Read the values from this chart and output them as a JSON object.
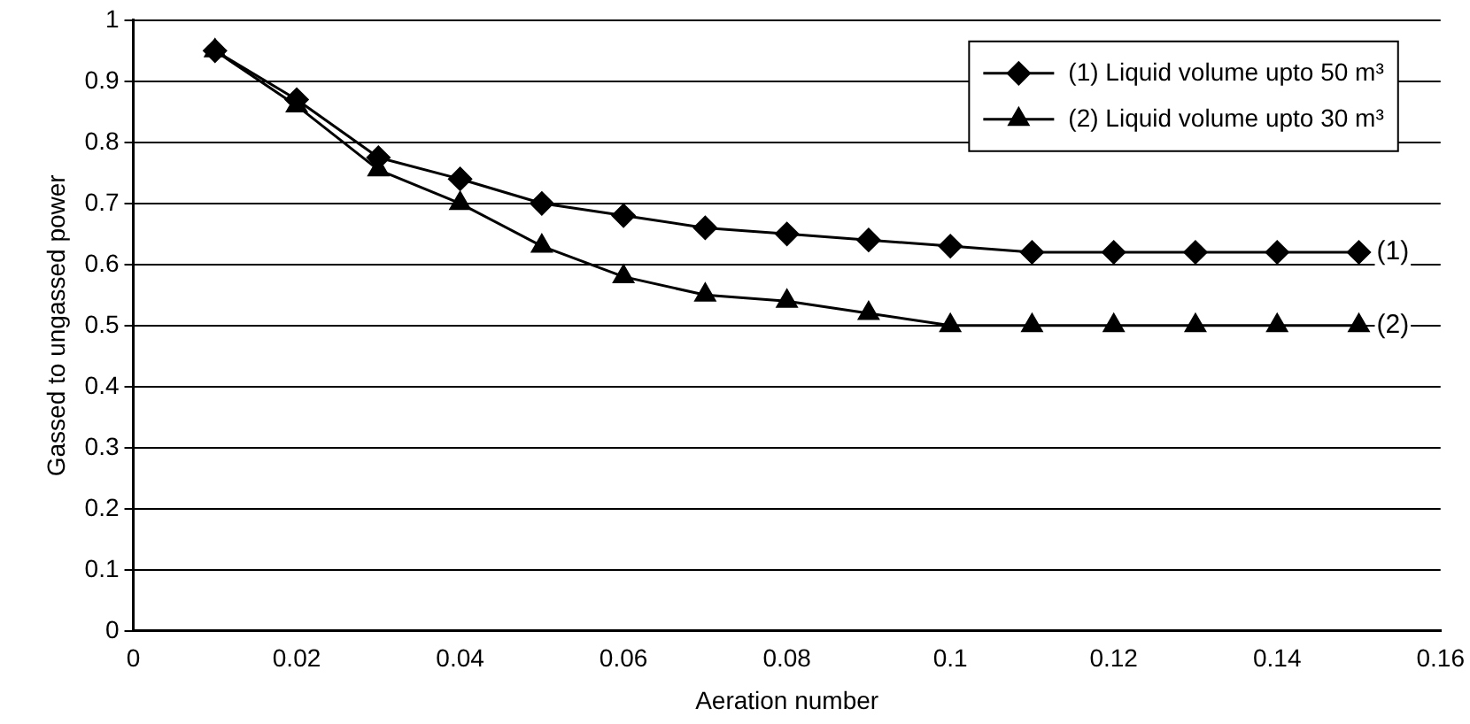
{
  "chart_data": {
    "type": "line",
    "xlabel": "Aeration number",
    "ylabel": "Gassed to ungassed power",
    "x": [
      0.01,
      0.02,
      0.03,
      0.04,
      0.05,
      0.06,
      0.07,
      0.08,
      0.09,
      0.1,
      0.11,
      0.12,
      0.13,
      0.14,
      0.15
    ],
    "series": [
      {
        "name": "(1) Liquid volume upto 50 m³",
        "color": "#000000",
        "marker": "diamond",
        "values": [
          0.95,
          0.87,
          0.775,
          0.74,
          0.7,
          0.68,
          0.66,
          0.65,
          0.64,
          0.63,
          0.62,
          0.62,
          0.62,
          0.62,
          0.62
        ]
      },
      {
        "name": "(2) Liquid volume upto 30 m³",
        "color": "#000000",
        "marker": "triangle",
        "values": [
          0.95,
          0.86,
          0.755,
          0.7,
          0.63,
          0.58,
          0.55,
          0.54,
          0.52,
          0.5,
          0.5,
          0.5,
          0.5,
          0.5,
          0.5
        ]
      }
    ],
    "annotations": [
      {
        "text": "(1)",
        "x": 0.15,
        "y": 0.62
      },
      {
        "text": "(2)",
        "x": 0.15,
        "y": 0.5
      }
    ],
    "xlim": [
      0,
      0.16
    ],
    "xticks": [
      0,
      0.02,
      0.04,
      0.06,
      0.08,
      0.1,
      0.12,
      0.14,
      0.16
    ],
    "ylim": [
      0,
      1
    ],
    "yticks": [
      0,
      0.1,
      0.2,
      0.3,
      0.4,
      0.5,
      0.6,
      0.7,
      0.8,
      0.9,
      1
    ],
    "grid": "y",
    "legend": "top right",
    "line_style": "solid"
  }
}
